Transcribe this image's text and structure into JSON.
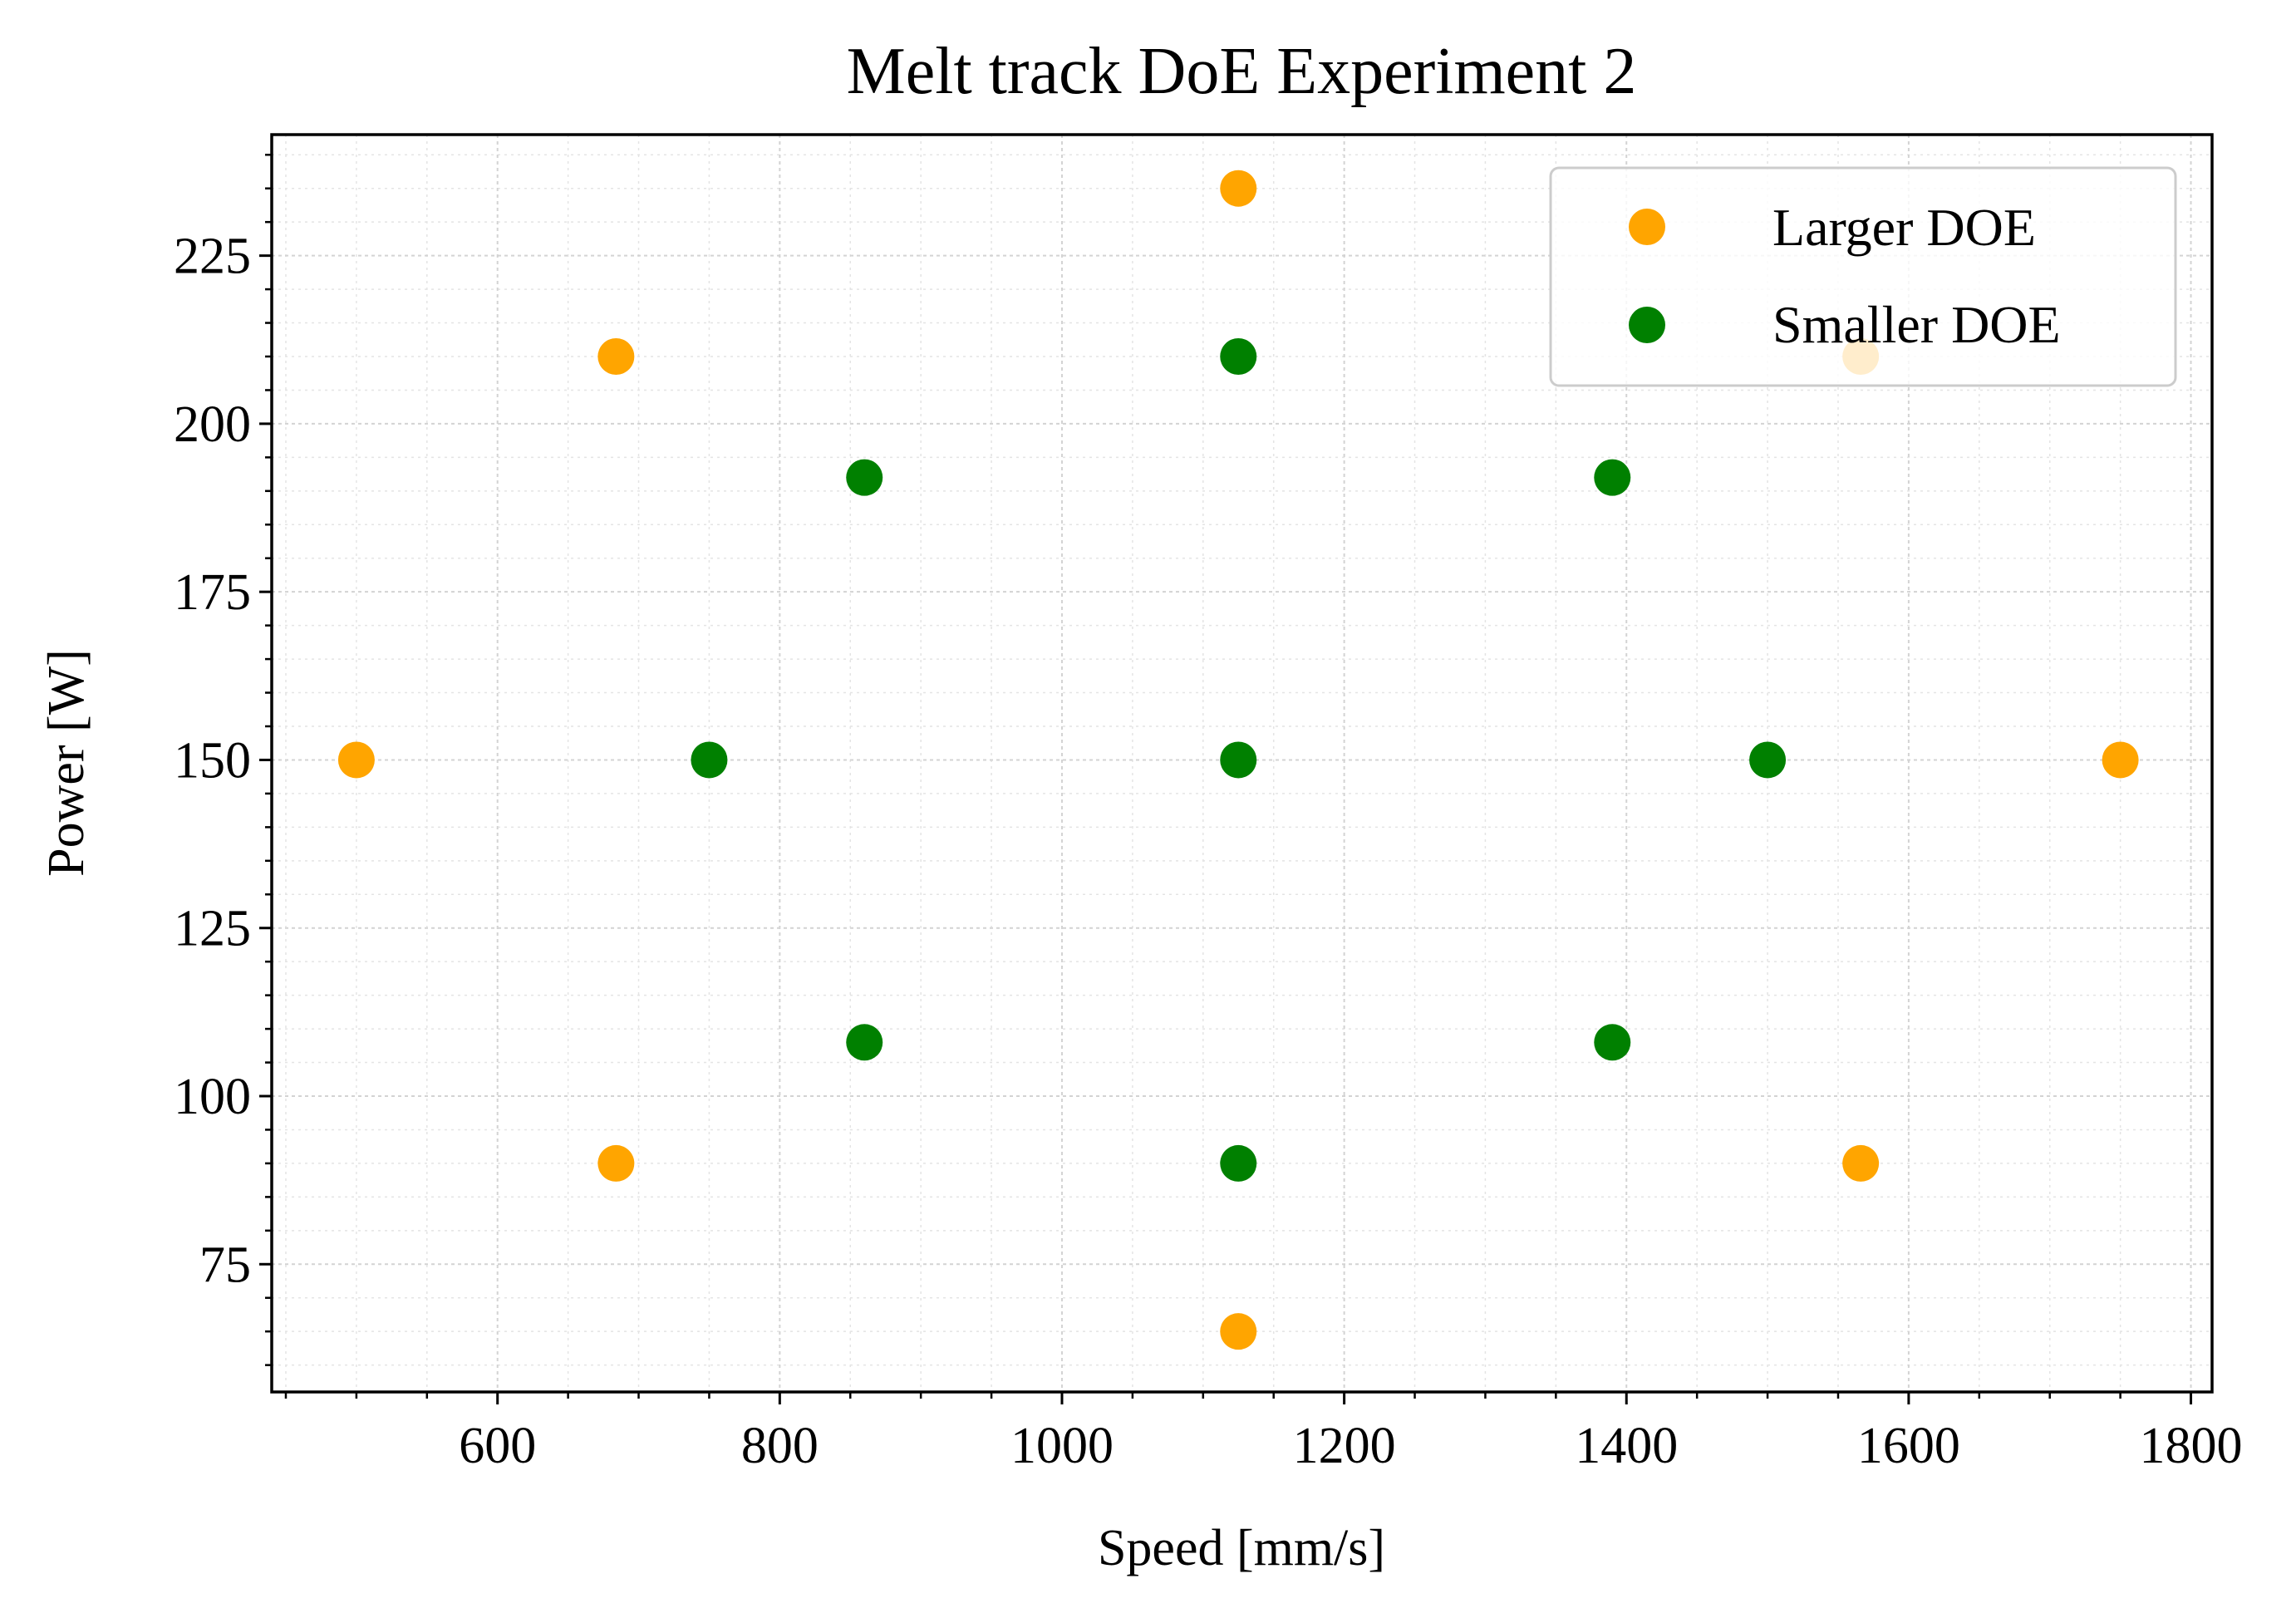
{
  "chart_data": {
    "type": "scatter",
    "title": "Melt track DoE Experiment 2",
    "xlabel": "Speed [mm/s]",
    "ylabel": "Power [W]",
    "xlim": [
      440,
      1815
    ],
    "ylim": [
      56,
      243
    ],
    "xticks": [
      600,
      800,
      1000,
      1200,
      1400,
      1600,
      1800
    ],
    "yticks": [
      75,
      100,
      125,
      150,
      175,
      200,
      225
    ],
    "x_minor_step": 50,
    "y_minor_step": 5,
    "grid": true,
    "legend_position": "upper right",
    "series": [
      {
        "name": "Larger DOE",
        "color": "#FFA500",
        "points": [
          {
            "x": 1125,
            "y": 235
          },
          {
            "x": 684,
            "y": 210
          },
          {
            "x": 1566,
            "y": 210
          },
          {
            "x": 500,
            "y": 150
          },
          {
            "x": 1750,
            "y": 150
          },
          {
            "x": 684,
            "y": 90
          },
          {
            "x": 1566,
            "y": 90
          },
          {
            "x": 1125,
            "y": 65
          }
        ]
      },
      {
        "name": "Smaller DOE",
        "color": "#008000",
        "points": [
          {
            "x": 1125,
            "y": 210
          },
          {
            "x": 860,
            "y": 192
          },
          {
            "x": 1390,
            "y": 192
          },
          {
            "x": 750,
            "y": 150
          },
          {
            "x": 1125,
            "y": 150
          },
          {
            "x": 1500,
            "y": 150
          },
          {
            "x": 860,
            "y": 108
          },
          {
            "x": 1390,
            "y": 108
          },
          {
            "x": 1125,
            "y": 90
          }
        ]
      }
    ]
  }
}
